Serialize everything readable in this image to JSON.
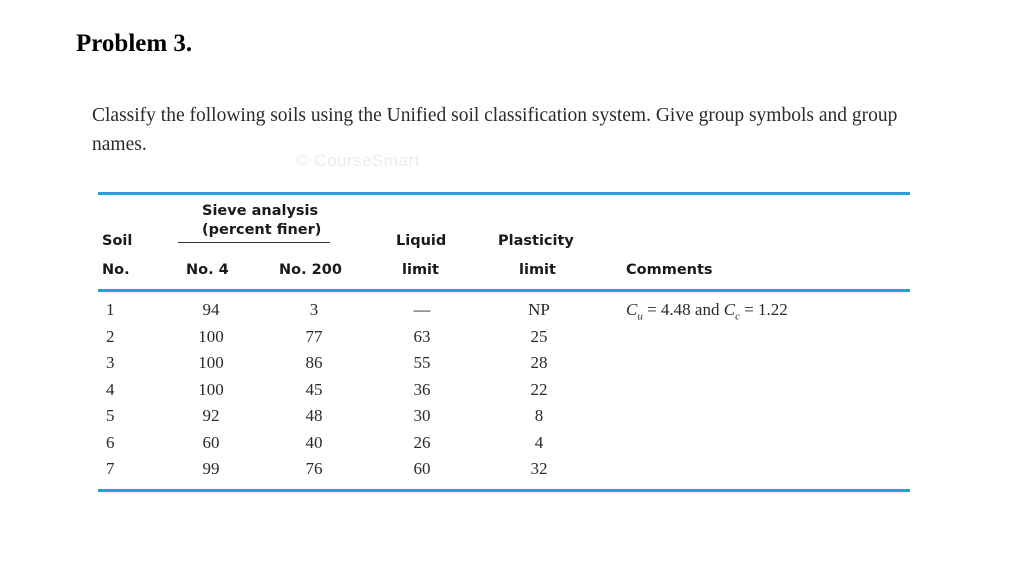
{
  "title": "Problem 3.",
  "prompt": "Classify the following soils using the Unified soil classification system. Give group symbols and group names.",
  "watermark": "© CourseSmart",
  "table": {
    "headers": {
      "soil_line1": "Soil",
      "soil_line2": "No.",
      "sieve_line1": "Sieve analysis",
      "sieve_line2": "(percent finer)",
      "no4": "No. 4",
      "no200": "No. 200",
      "liquid_line1": "Liquid",
      "liquid_line2": "limit",
      "plastic_line1": "Plasticity",
      "plastic_line2": "limit",
      "comments": "Comments"
    },
    "rows": [
      {
        "no": "1",
        "no4": "94",
        "no200": "3",
        "ll": "—",
        "pl": "NP"
      },
      {
        "no": "2",
        "no4": "100",
        "no200": "77",
        "ll": "63",
        "pl": "25"
      },
      {
        "no": "3",
        "no4": "100",
        "no200": "86",
        "ll": "55",
        "pl": "28"
      },
      {
        "no": "4",
        "no4": "100",
        "no200": "45",
        "ll": "36",
        "pl": "22"
      },
      {
        "no": "5",
        "no4": "92",
        "no200": "48",
        "ll": "30",
        "pl": "8"
      },
      {
        "no": "6",
        "no4": "60",
        "no200": "40",
        "ll": "26",
        "pl": "4"
      },
      {
        "no": "7",
        "no4": "99",
        "no200": "76",
        "ll": "60",
        "pl": "32"
      }
    ],
    "comment_row1": {
      "cu_symbol": "C",
      "cu_sub": "u",
      "cu_text": " = 4.48 and ",
      "cc_symbol": "C",
      "cc_sub": "c",
      "cc_text": " = 1.22"
    }
  },
  "colors": {
    "rule": "#2a9fd6"
  }
}
